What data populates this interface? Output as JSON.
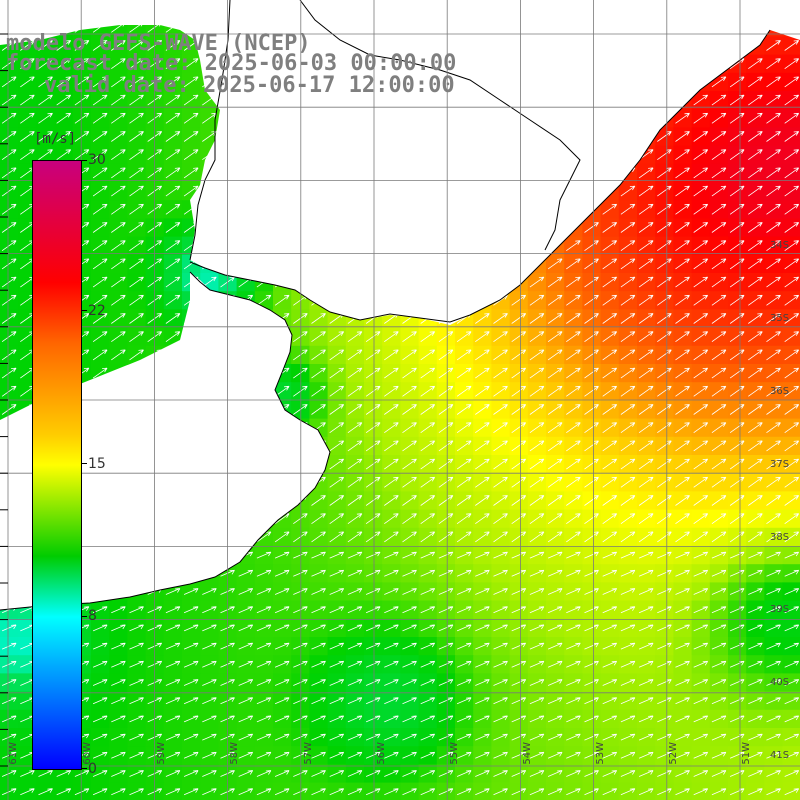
{
  "title": {
    "line1": "modelo GEFS-WAVE (NCEP)",
    "line2": "forecast date: 2025-06-03 00:00:00",
    "line3": "valid date: 2025-06-17 12:00:00"
  },
  "colorbar": {
    "units": "[m/s]",
    "ticks": [
      {
        "label": "30",
        "value": 30
      },
      {
        "label": "22",
        "value": 22
      },
      {
        "label": "15",
        "value": 15
      },
      {
        "label": "8",
        "value": 8
      },
      {
        "label": "0",
        "value": 0
      }
    ],
    "colors": [
      "#c8007e",
      "#ff0000",
      "#ff6600",
      "#ffcc00",
      "#ffff00",
      "#aaee00",
      "#00cc00",
      "#00ffff",
      "#00aaff",
      "#0000ff"
    ]
  },
  "map": {
    "lat_labels": [
      "34S",
      "35S",
      "36S",
      "37S",
      "38S",
      "39S",
      "40S",
      "41S"
    ],
    "lon_labels": [
      "61W",
      "60W",
      "59W",
      "58W",
      "57W",
      "56W",
      "55W",
      "54W",
      "53W",
      "52W",
      "51W"
    ],
    "field": "wind speed with direction arrows",
    "land_color": "#ffffff",
    "coast_color": "#000000"
  }
}
